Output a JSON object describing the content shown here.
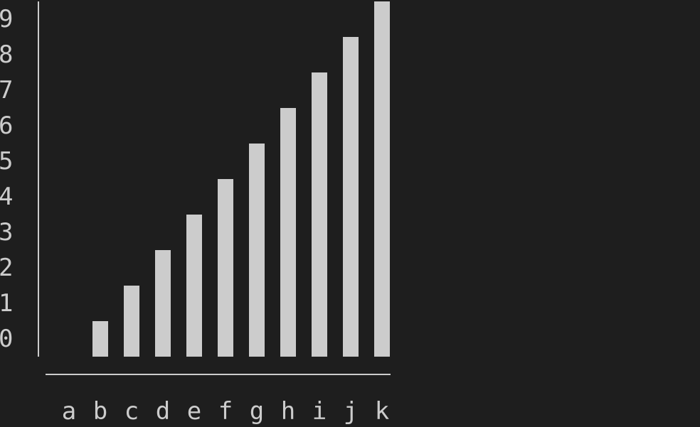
{
  "chart_data": {
    "type": "bar",
    "categories": [
      "a",
      "b",
      "c",
      "d",
      "e",
      "f",
      "g",
      "h",
      "i",
      "j",
      "k"
    ],
    "values": [
      0,
      1,
      2,
      3,
      4,
      5,
      6,
      7,
      8,
      9,
      10
    ],
    "y_ticks": [
      "0",
      "1",
      "2",
      "3",
      "4",
      "5",
      "6",
      "7",
      "8",
      "9"
    ],
    "ylim": [
      0,
      10
    ],
    "title": "",
    "xlabel": "",
    "ylabel": "",
    "grid": false,
    "legend": "none"
  },
  "colors": {
    "background": "#1e1e1e",
    "bar": "#cccccc",
    "axis": "#cccccc",
    "text": "#cccccc"
  }
}
